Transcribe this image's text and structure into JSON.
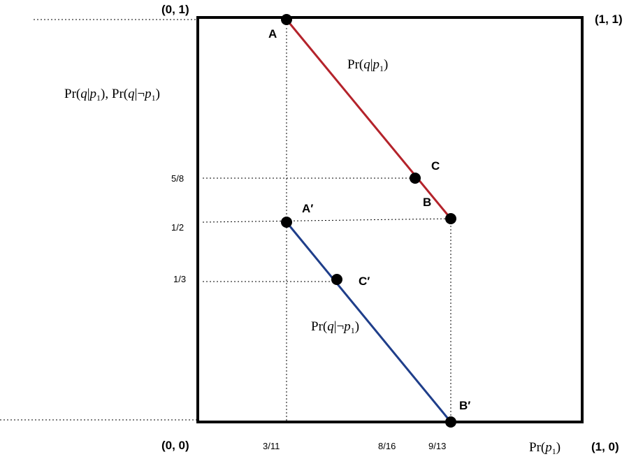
{
  "corners": {
    "top_left": "(0, 1)",
    "top_right": "(1, 1)",
    "bottom_left": "(0, 0)",
    "bottom_right": "(1, 0)"
  },
  "y_axis_label": {
    "pr1": "Pr(",
    "q1": "q",
    "bar1": "|",
    "p1": "p",
    "sub1": "1",
    "close1": ")",
    "sep": ", ",
    "pr2": "Pr(",
    "q2": "q",
    "bar2": "|¬",
    "p2": "p",
    "sub2": "1",
    "close2": ")"
  },
  "x_axis_label": {
    "pr": "Pr(",
    "p": "p",
    "sub": "1",
    "close": ")"
  },
  "y_ticks": [
    "5/8",
    "1/2",
    "1/3"
  ],
  "x_ticks": [
    "3/11",
    "8/16",
    "9/13"
  ],
  "points": {
    "A": "A",
    "B": "B",
    "C": "C",
    "A_prime": "A′",
    "B_prime": "B′",
    "C_prime": "C′"
  },
  "line_labels": {
    "upper": {
      "pr": "Pr(",
      "q": "q",
      "bar": "|",
      "p": "p",
      "sub": "1",
      "close": ")"
    },
    "lower": {
      "pr": "Pr(",
      "q": "q",
      "bar": "|¬",
      "p": "p",
      "sub": "1",
      "close": ")"
    }
  },
  "colors": {
    "upper_line": "#b4232b",
    "lower_line": "#1f3e8a",
    "frame": "#000000"
  }
}
